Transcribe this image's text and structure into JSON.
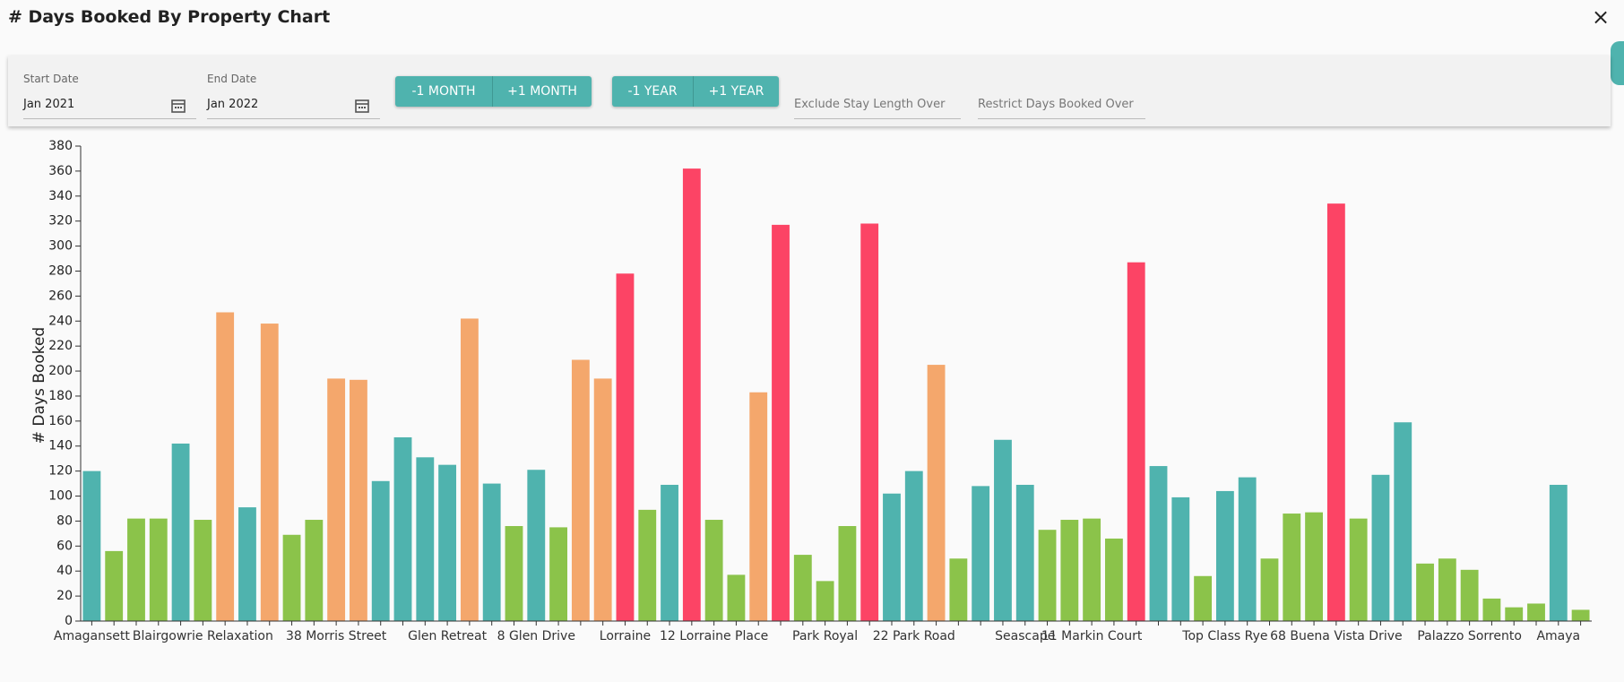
{
  "header": {
    "title": "# Days Booked By Property Chart",
    "close": "×"
  },
  "filters": {
    "start_date": {
      "label": "Start Date",
      "value": "Jan 2021"
    },
    "end_date": {
      "label": "End Date",
      "value": "Jan 2022"
    },
    "month_buttons": [
      "-1 MONTH",
      "+1 MONTH"
    ],
    "year_buttons": [
      "-1 YEAR",
      "+1 YEAR"
    ],
    "exclude_stay_length": "Exclude Stay Length Over",
    "restrict_days_booked": "Restrict Days Booked Over"
  },
  "chart_data": {
    "type": "bar",
    "y_label": "# Days Booked",
    "ylim": [
      0,
      380
    ],
    "yticks": [
      0,
      20,
      40,
      60,
      80,
      100,
      120,
      140,
      160,
      180,
      200,
      220,
      240,
      260,
      280,
      300,
      320,
      340,
      360,
      380
    ],
    "categories": [
      "Amagansett",
      null,
      null,
      null,
      null,
      "Blairgowrie Relaxation",
      null,
      null,
      null,
      null,
      null,
      "38 Morris Street",
      null,
      null,
      null,
      null,
      "Glen Retreat",
      null,
      null,
      null,
      "8 Glen Drive",
      null,
      null,
      null,
      "Lorraine",
      null,
      null,
      null,
      "12 Lorraine Place",
      null,
      null,
      null,
      null,
      "Park Royal",
      null,
      null,
      null,
      "22 Park Road",
      null,
      null,
      null,
      null,
      "Seascape",
      null,
      null,
      "11 Markin Court",
      null,
      null,
      null,
      null,
      null,
      "Top Class Rye",
      null,
      null,
      null,
      null,
      "68 Buena Vista Drive",
      null,
      null,
      null,
      null,
      null,
      "Palazzo Sorrento",
      null,
      null,
      null,
      "Amaya",
      null
    ],
    "values": [
      120,
      56,
      82,
      82,
      142,
      81,
      247,
      91,
      238,
      69,
      81,
      194,
      193,
      112,
      147,
      131,
      125,
      242,
      110,
      76,
      121,
      75,
      209,
      194,
      278,
      89,
      109,
      362,
      81,
      37,
      183,
      317,
      53,
      32,
      76,
      318,
      102,
      120,
      205,
      50,
      108,
      145,
      109,
      73,
      81,
      82,
      66,
      287,
      124,
      99,
      36,
      104,
      115,
      50,
      86,
      87,
      334,
      82,
      117,
      159,
      46,
      50,
      41,
      18,
      11,
      14,
      109,
      9
    ],
    "colors": [
      "#4fb3ae",
      "#8bc34a",
      "#8bc34a",
      "#8bc34a",
      "#4fb3ae",
      "#8bc34a",
      "#f4a76c",
      "#4fb3ae",
      "#f4a76c",
      "#8bc34a",
      "#8bc34a",
      "#f4a76c",
      "#f4a76c",
      "#4fb3ae",
      "#4fb3ae",
      "#4fb3ae",
      "#4fb3ae",
      "#f4a76c",
      "#4fb3ae",
      "#8bc34a",
      "#4fb3ae",
      "#8bc34a",
      "#f4a76c",
      "#f4a76c",
      "#fc4465",
      "#8bc34a",
      "#4fb3ae",
      "#fc4465",
      "#8bc34a",
      "#8bc34a",
      "#f4a76c",
      "#fc4465",
      "#8bc34a",
      "#8bc34a",
      "#8bc34a",
      "#fc4465",
      "#4fb3ae",
      "#4fb3ae",
      "#f4a76c",
      "#8bc34a",
      "#4fb3ae",
      "#4fb3ae",
      "#4fb3ae",
      "#8bc34a",
      "#8bc34a",
      "#8bc34a",
      "#8bc34a",
      "#fc4465",
      "#4fb3ae",
      "#4fb3ae",
      "#8bc34a",
      "#4fb3ae",
      "#4fb3ae",
      "#8bc34a",
      "#8bc34a",
      "#8bc34a",
      "#fc4465",
      "#8bc34a",
      "#4fb3ae",
      "#4fb3ae",
      "#8bc34a",
      "#8bc34a",
      "#8bc34a",
      "#8bc34a",
      "#8bc34a",
      "#8bc34a",
      "#4fb3ae",
      "#8bc34a"
    ]
  }
}
